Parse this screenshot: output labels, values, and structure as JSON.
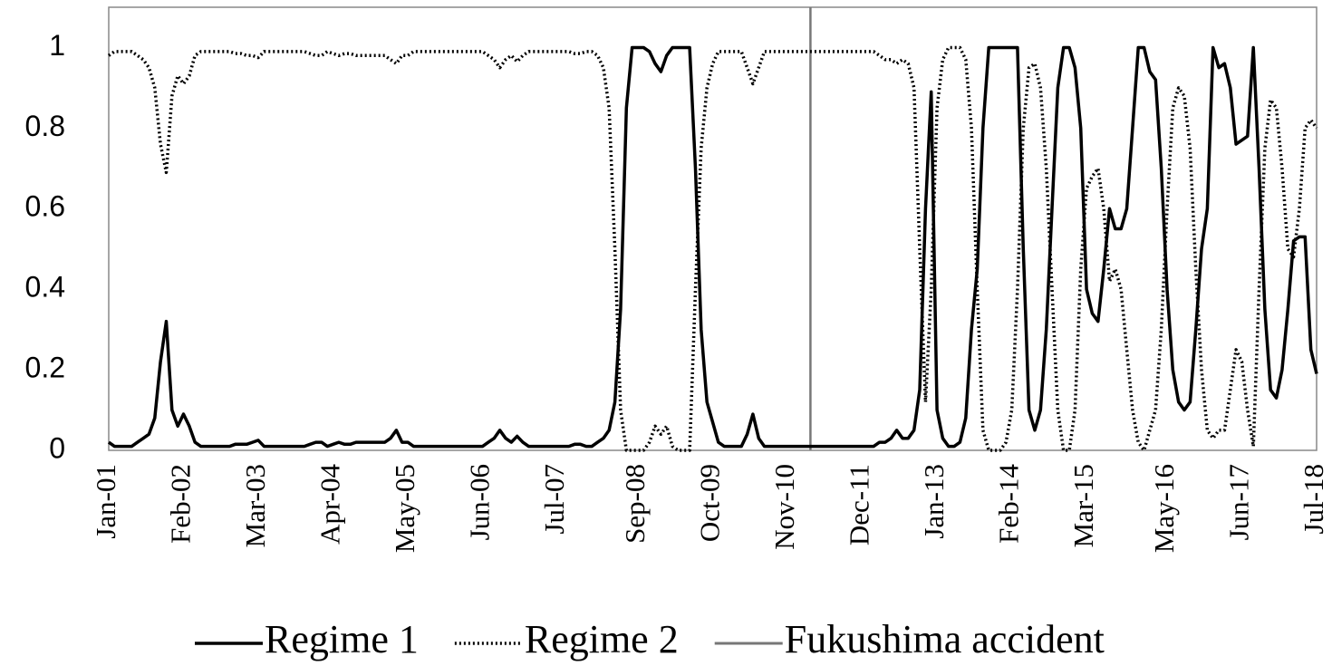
{
  "chart_data": {
    "type": "line",
    "categories": [
      "Jan-01",
      null,
      null,
      null,
      null,
      null,
      null,
      null,
      null,
      null,
      null,
      null,
      null,
      "Feb-02",
      null,
      null,
      null,
      null,
      null,
      null,
      null,
      null,
      null,
      null,
      null,
      null,
      "Mar-03",
      null,
      null,
      null,
      null,
      null,
      null,
      null,
      null,
      null,
      null,
      null,
      null,
      "Apr-04",
      null,
      null,
      null,
      null,
      null,
      null,
      null,
      null,
      null,
      null,
      null,
      null,
      "May-05",
      null,
      null,
      null,
      null,
      null,
      null,
      null,
      null,
      null,
      null,
      null,
      null,
      "Jun-06",
      null,
      null,
      null,
      null,
      null,
      null,
      null,
      null,
      null,
      null,
      null,
      null,
      "Jul-07",
      null,
      null,
      null,
      null,
      null,
      null,
      null,
      null,
      null,
      null,
      null,
      null,
      null,
      "Sep-08",
      null,
      null,
      null,
      null,
      null,
      null,
      null,
      null,
      null,
      null,
      null,
      null,
      "Oct-09",
      null,
      null,
      null,
      null,
      null,
      null,
      null,
      null,
      null,
      null,
      null,
      null,
      "Nov-10",
      null,
      null,
      null,
      null,
      null,
      null,
      null,
      null,
      null,
      null,
      null,
      null,
      "Dec-11",
      null,
      null,
      null,
      null,
      null,
      null,
      null,
      null,
      null,
      null,
      null,
      null,
      "Jan-13",
      null,
      null,
      null,
      null,
      null,
      null,
      null,
      null,
      null,
      null,
      null,
      null,
      "Feb-14",
      null,
      null,
      null,
      null,
      null,
      null,
      null,
      null,
      null,
      null,
      null,
      null,
      "Mar-15",
      null,
      null,
      null,
      null,
      null,
      null,
      null,
      null,
      null,
      null,
      null,
      null,
      null,
      "May-16",
      null,
      null,
      null,
      null,
      null,
      null,
      null,
      null,
      null,
      null,
      null,
      null,
      "Jun-17",
      null,
      null,
      null,
      null,
      null,
      null,
      null,
      null,
      null,
      null,
      null,
      null,
      "Jul-18"
    ],
    "series": [
      {
        "name": "Regime 1",
        "color": "#000000",
        "style": "solid",
        "values": [
          0.02,
          0.01,
          0.01,
          0.01,
          0.01,
          0.02,
          0.03,
          0.04,
          0.08,
          0.22,
          0.32,
          0.1,
          0.06,
          0.09,
          0.06,
          0.02,
          0.01,
          0.01,
          0.01,
          0.01,
          0.01,
          0.01,
          0.015,
          0.015,
          0.015,
          0.02,
          0.025,
          0.01,
          0.01,
          0.01,
          0.01,
          0.01,
          0.01,
          0.01,
          0.01,
          0.015,
          0.02,
          0.02,
          0.01,
          0.015,
          0.02,
          0.015,
          0.015,
          0.02,
          0.02,
          0.02,
          0.02,
          0.02,
          0.02,
          0.03,
          0.05,
          0.02,
          0.02,
          0.01,
          0.01,
          0.01,
          0.01,
          0.01,
          0.01,
          0.01,
          0.01,
          0.01,
          0.01,
          0.01,
          0.01,
          0.01,
          0.02,
          0.03,
          0.05,
          0.03,
          0.02,
          0.035,
          0.02,
          0.01,
          0.01,
          0.01,
          0.01,
          0.01,
          0.01,
          0.01,
          0.01,
          0.015,
          0.015,
          0.01,
          0.01,
          0.02,
          0.03,
          0.05,
          0.12,
          0.35,
          0.85,
          1,
          1,
          1,
          0.99,
          0.96,
          0.94,
          0.98,
          1,
          1,
          1,
          1,
          0.7,
          0.3,
          0.12,
          0.07,
          0.02,
          0.01,
          0.01,
          0.01,
          0.01,
          0.04,
          0.09,
          0.03,
          0.01,
          0.01,
          0.01,
          0.01,
          0.01,
          0.01,
          0.01,
          0.01,
          0.01,
          0.01,
          0.01,
          0.01,
          0.01,
          0.01,
          0.01,
          0.01,
          0.01,
          0.01,
          0.01,
          0.01,
          0.02,
          0.02,
          0.03,
          0.05,
          0.03,
          0.03,
          0.05,
          0.15,
          0.6,
          0.89,
          0.1,
          0.03,
          0.01,
          0.01,
          0.02,
          0.08,
          0.3,
          0.45,
          0.8,
          1,
          1,
          1,
          1,
          1,
          1,
          0.5,
          0.1,
          0.05,
          0.1,
          0.3,
          0.6,
          0.9,
          1,
          1,
          0.95,
          0.8,
          0.4,
          0.34,
          0.32,
          0.45,
          0.6,
          0.55,
          0.55,
          0.6,
          0.8,
          1,
          1,
          0.94,
          0.92,
          0.7,
          0.4,
          0.2,
          0.12,
          0.1,
          0.12,
          0.3,
          0.5,
          0.6,
          1,
          0.95,
          0.96,
          0.9,
          0.76,
          0.77,
          0.78,
          1,
          0.7,
          0.35,
          0.15,
          0.13,
          0.2,
          0.35,
          0.52,
          0.53,
          0.53,
          0.25,
          0.19
        ]
      },
      {
        "name": "Regime 2",
        "color": "#000000",
        "style": "dotted",
        "values": [
          0.98,
          0.99,
          0.99,
          0.99,
          0.99,
          0.98,
          0.97,
          0.95,
          0.9,
          0.76,
          0.69,
          0.88,
          0.93,
          0.91,
          0.93,
          0.98,
          0.99,
          0.99,
          0.99,
          0.99,
          0.99,
          0.99,
          0.985,
          0.985,
          0.98,
          0.98,
          0.975,
          0.99,
          0.99,
          0.99,
          0.99,
          0.99,
          0.99,
          0.99,
          0.99,
          0.985,
          0.98,
          0.98,
          0.99,
          0.985,
          0.98,
          0.985,
          0.985,
          0.98,
          0.98,
          0.98,
          0.98,
          0.98,
          0.98,
          0.97,
          0.96,
          0.98,
          0.98,
          0.99,
          0.99,
          0.99,
          0.99,
          0.99,
          0.99,
          0.99,
          0.99,
          0.99,
          0.99,
          0.99,
          0.99,
          0.99,
          0.98,
          0.97,
          0.95,
          0.97,
          0.98,
          0.965,
          0.98,
          0.99,
          0.99,
          0.99,
          0.99,
          0.99,
          0.99,
          0.99,
          0.99,
          0.985,
          0.985,
          0.99,
          0.99,
          0.98,
          0.95,
          0.85,
          0.5,
          0.1,
          0,
          0,
          0,
          0,
          0.02,
          0.06,
          0.04,
          0.06,
          0.01,
          0,
          0,
          0,
          0.4,
          0.75,
          0.9,
          0.96,
          0.99,
          0.99,
          0.99,
          0.99,
          0.99,
          0.95,
          0.91,
          0.95,
          0.99,
          0.99,
          0.99,
          0.99,
          0.99,
          0.99,
          0.99,
          0.99,
          0.99,
          0.99,
          0.99,
          0.99,
          0.99,
          0.99,
          0.99,
          0.99,
          0.99,
          0.99,
          0.99,
          0.99,
          0.98,
          0.97,
          0.97,
          0.96,
          0.97,
          0.96,
          0.9,
          0.5,
          0.12,
          0.4,
          0.85,
          0.97,
          1,
          1,
          1,
          0.97,
          0.8,
          0.4,
          0.05,
          0,
          0,
          0,
          0.02,
          0.1,
          0.4,
          0.8,
          0.95,
          0.96,
          0.9,
          0.7,
          0.4,
          0.1,
          0,
          0,
          0.1,
          0.45,
          0.65,
          0.68,
          0.7,
          0.6,
          0.42,
          0.45,
          0.4,
          0.25,
          0.1,
          0.02,
          0,
          0.05,
          0.1,
          0.3,
          0.6,
          0.85,
          0.9,
          0.88,
          0.75,
          0.45,
          0.2,
          0.05,
          0.03,
          0.05,
          0.05,
          0.15,
          0.25,
          0.22,
          0.1,
          0.01,
          0.4,
          0.75,
          0.87,
          0.85,
          0.7,
          0.5,
          0.48,
          0.6,
          0.8,
          0.82,
          0.8
        ]
      }
    ],
    "vlines": [
      {
        "name": "Fukushima accident",
        "x": 122,
        "color": "#777777"
      }
    ],
    "ylim": [
      0,
      1.1
    ],
    "yticks": [
      0,
      0.2,
      0.4,
      0.6,
      0.8,
      1
    ],
    "grid": false
  }
}
